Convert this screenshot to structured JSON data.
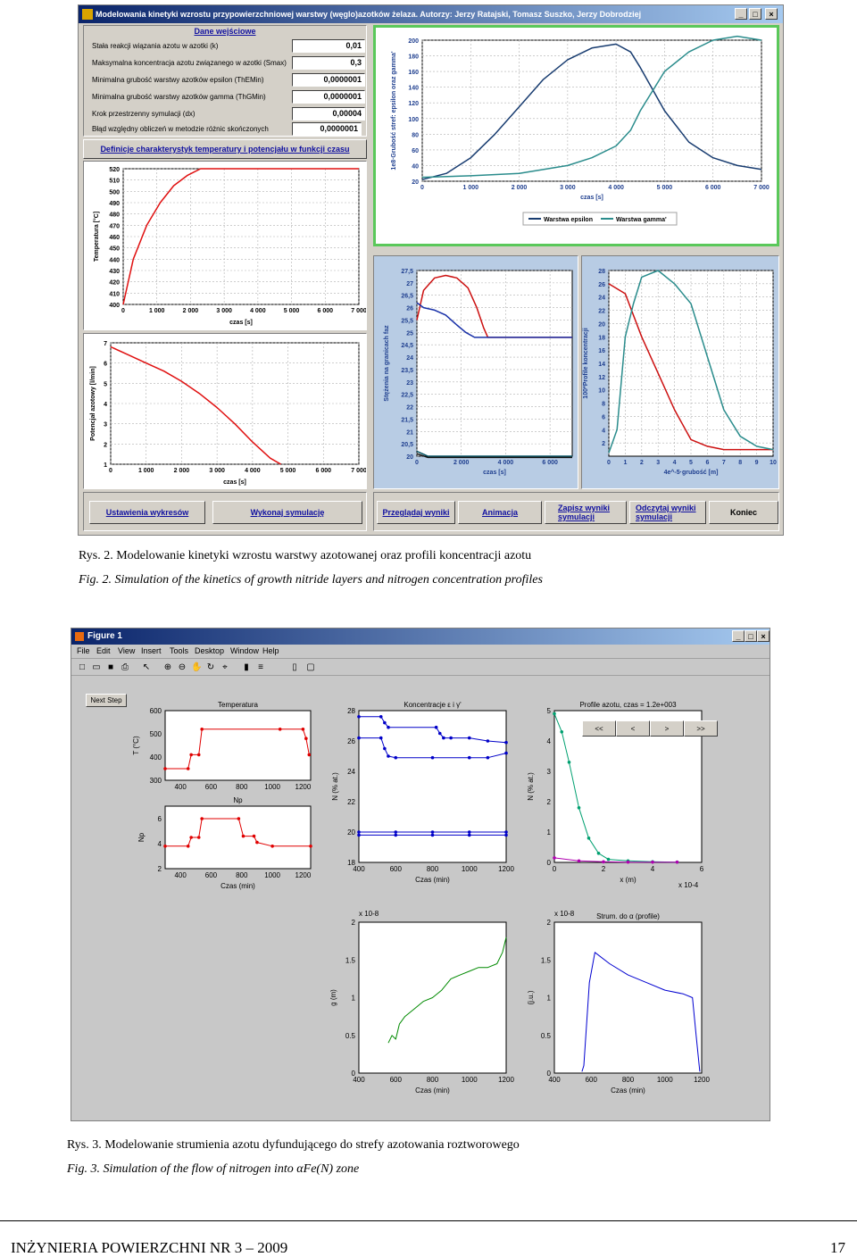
{
  "fig2": {
    "title": "Modelowania kinetyki wzrostu przypowierzchniowej warstwy (węglo)azotków żelaza. Autorzy: Jerzy Ratajski, Tomasz Suszko, Jerzy Dobrodziej",
    "win_min": "_",
    "win_max": "□",
    "win_close": "×",
    "input_header": "Dane wejściowe",
    "params": [
      {
        "label": "Stała reakcji wiązania azotu w azotki (k)",
        "value": "0,01"
      },
      {
        "label": "Maksymalna koncentracja azotu związanego w azotki (Smax)",
        "value": "0,3"
      },
      {
        "label": "Minimalna grubość warstwy azotków epsilon (ThEMin)",
        "value": "0,0000001"
      },
      {
        "label": "Minimalna grubość warstwy azotków gamma (ThGMin)",
        "value": "0,0000001"
      },
      {
        "label": "Krok przestrzenny symulacji (dx)",
        "value": "0,00004"
      },
      {
        "label": "Błąd względny obliczeń w metodzie różnic skończonych",
        "value": "0,0000001"
      }
    ],
    "define_button": "Definicje charakterystyk temperatury i potencjału w funkcji czasu",
    "buttons": {
      "settings": "Ustawienia wykresów",
      "run": "Wykonaj symulację",
      "browse": "Przeglądaj wyniki",
      "animate": "Animacja",
      "save": "Zapisz wyniki symulacji",
      "read": "Odczytaj wyniki symulacji",
      "exit": "Koniec"
    }
  },
  "caption2_pl": "Rys. 2. Modelowanie kinetyki wzrostu warstwy azotowanej oraz profili koncentracji azotu",
  "caption2_en": "Fig. 2. Simulation of the kinetics of growth nitride layers and nitrogen concentration profiles",
  "fig3": {
    "title": "Figure 1",
    "win_min": "_",
    "win_max": "□",
    "win_close": "×",
    "menu": [
      "File",
      "Edit",
      "View",
      "Insert",
      "Tools",
      "Desktop",
      "Window",
      "Help"
    ],
    "next_step": "Next Step",
    "nav": [
      "<<",
      "<",
      ">",
      ">>"
    ]
  },
  "caption3_pl": "Rys. 3. Modelowanie strumienia azotu dyfundującego do strefy azotowania roztworowego",
  "caption3_en": "Fig. 3. Simulation of the flow of nitrogen into αFe(N) zone",
  "footer": {
    "journal": "INŻYNIERIA POWIERZCHNI NR 3 – 2009",
    "page": "17"
  },
  "chart_data": [
    {
      "type": "line",
      "ylabel": "Temperatura [°C]",
      "xlabel": "czas [s]",
      "xlim": [
        0,
        7000
      ],
      "ylim": [
        400,
        520
      ],
      "x_ticks": [
        "0",
        "1 000",
        "2 000",
        "3 000",
        "4 000",
        "5 000",
        "6 000",
        "7 000"
      ],
      "y_ticks": [
        "400",
        "410",
        "420",
        "430",
        "440",
        "450",
        "460",
        "470",
        "480",
        "490",
        "500",
        "510",
        "520"
      ],
      "series": [
        {
          "x": [
            0,
            300,
            700,
            1100,
            1500,
            1900,
            2300,
            7000
          ],
          "y": [
            400,
            440,
            470,
            490,
            505,
            514,
            520,
            520
          ]
        }
      ]
    },
    {
      "type": "line",
      "ylabel": "Potencjał azotowy [l/min]",
      "xlabel": "czas [s]",
      "xlim": [
        0,
        7000
      ],
      "ylim": [
        1,
        7
      ],
      "x_ticks": [
        "0",
        "1 000",
        "2 000",
        "3 000",
        "4 000",
        "5 000",
        "6 000",
        "7 000"
      ],
      "y_ticks": [
        "1",
        "2",
        "3",
        "4",
        "5",
        "6",
        "7"
      ],
      "series": [
        {
          "x": [
            0,
            500,
            1000,
            1500,
            2000,
            2500,
            3000,
            3500,
            4000,
            4500,
            4800
          ],
          "y": [
            6.8,
            6.4,
            6.0,
            5.6,
            5.1,
            4.5,
            3.8,
            3.0,
            2.1,
            1.3,
            1.0
          ]
        }
      ]
    },
    {
      "type": "line",
      "ylabel": "1e8·Grubość stref: epsilon oraz gamma'",
      "xlabel": "czas [s]",
      "xlim": [
        0,
        7000
      ],
      "ylim": [
        20,
        200
      ],
      "x_ticks": [
        "0",
        "1 000",
        "2 000",
        "3 000",
        "4 000",
        "5 000",
        "6 000",
        "7 000"
      ],
      "y_ticks": [
        "20",
        "40",
        "60",
        "80",
        "100",
        "120",
        "140",
        "160",
        "180",
        "200"
      ],
      "series": [
        {
          "name": "Warstwa epsilon",
          "x": [
            0,
            500,
            1000,
            1500,
            2000,
            2500,
            3000,
            3500,
            4000,
            4300,
            4500,
            5000,
            5500,
            6000,
            6500,
            7000
          ],
          "y": [
            22,
            30,
            50,
            80,
            115,
            150,
            175,
            190,
            195,
            185,
            165,
            110,
            70,
            50,
            40,
            35
          ]
        },
        {
          "name": "Warstwa gamma'",
          "x": [
            0,
            1000,
            2000,
            3000,
            3500,
            4000,
            4300,
            4500,
            5000,
            5500,
            6000,
            6500,
            7000
          ],
          "y": [
            25,
            27,
            30,
            40,
            50,
            65,
            85,
            110,
            160,
            185,
            200,
            205,
            200
          ]
        }
      ]
    },
    {
      "type": "line",
      "ylabel": "Stężenia na granicach faz",
      "xlabel": "czas [s]",
      "xlim": [
        0,
        7000
      ],
      "ylim": [
        20,
        27.5
      ],
      "x_ticks": [
        "0",
        "2 000",
        "4 000",
        "6 000"
      ],
      "y_ticks": [
        "20",
        "20,5",
        "21",
        "21,5",
        "22",
        "22,5",
        "23",
        "23,5",
        "24",
        "24,5",
        "25",
        "25,5",
        "26",
        "26,5",
        "27",
        "27,5"
      ],
      "series": [
        {
          "x": [
            0,
            300,
            800,
            1300,
            1800,
            2300,
            2700,
            3000,
            3200,
            7000
          ],
          "y": [
            25.5,
            26.7,
            27.2,
            27.3,
            27.2,
            26.8,
            26.0,
            25.2,
            24.8,
            24.8
          ]
        },
        {
          "x": [
            0,
            300,
            800,
            1300,
            1800,
            2200,
            2600,
            3000,
            7000
          ],
          "y": [
            26.2,
            26.0,
            25.9,
            25.7,
            25.3,
            25.0,
            24.8,
            24.8,
            24.8
          ]
        },
        {
          "x": [
            0,
            500,
            1000,
            7000
          ],
          "y": [
            20.2,
            20.0,
            20.0,
            20.0
          ]
        },
        {
          "x": [
            0,
            500,
            1000,
            7000
          ],
          "y": [
            20.1,
            19.95,
            19.95,
            19.95
          ]
        }
      ]
    },
    {
      "type": "line",
      "ylabel": "100*Profile koncentracji",
      "xlabel": "4e^-5·grubość [m]",
      "xlim": [
        0,
        10
      ],
      "ylim": [
        0,
        28
      ],
      "x_ticks": [
        "0",
        "1",
        "2",
        "3",
        "4",
        "5",
        "6",
        "7",
        "8",
        "9",
        "10"
      ],
      "y_ticks": [
        "2",
        "4",
        "6",
        "8",
        "10",
        "12",
        "14",
        "16",
        "18",
        "20",
        "22",
        "24",
        "26",
        "28"
      ],
      "series": [
        {
          "x": [
            0,
            1,
            2,
            3,
            4,
            5,
            6,
            7,
            8,
            9,
            10
          ],
          "y": [
            26,
            24.5,
            18,
            12.5,
            7,
            2.5,
            1.5,
            1,
            1,
            1,
            1
          ]
        },
        {
          "x": [
            0,
            0.5,
            1,
            1.5,
            2,
            3,
            4,
            5,
            6,
            7,
            8,
            9,
            10
          ],
          "y": [
            0.5,
            4,
            18,
            23,
            27,
            28,
            26,
            23,
            15,
            7,
            3,
            1.5,
            1
          ]
        }
      ]
    },
    {
      "type": "line",
      "title": "Temperatura",
      "xlim": [
        300,
        1250
      ],
      "ylim": [
        300,
        600
      ],
      "x_ticks": [
        "400",
        "600",
        "800",
        "1000",
        "1200"
      ],
      "y_ticks": [
        "300",
        "400",
        "500",
        "600"
      ],
      "ylabel": "T (°C)",
      "series": [
        {
          "x": [
            300,
            450,
            470,
            520,
            540,
            1050,
            1200,
            1220,
            1240
          ],
          "y": [
            350,
            350,
            410,
            410,
            520,
            520,
            520,
            480,
            410
          ]
        }
      ]
    },
    {
      "type": "line",
      "title": "Np",
      "xlabel": "Czas (min)",
      "xlim": [
        300,
        1250
      ],
      "ylim": [
        2,
        7
      ],
      "x_ticks": [
        "400",
        "600",
        "800",
        "1000",
        "1200"
      ],
      "y_ticks": [
        "2",
        "4",
        "6"
      ],
      "ylabel": "Np",
      "series": [
        {
          "x": [
            300,
            450,
            470,
            520,
            540,
            780,
            810,
            880,
            900,
            1000,
            1250
          ],
          "y": [
            3.8,
            3.8,
            4.5,
            4.5,
            6,
            6,
            4.6,
            4.6,
            4.1,
            3.8,
            3.8
          ]
        }
      ]
    },
    {
      "type": "scatter",
      "title": "Koncentracje ε i γ'",
      "xlabel": "Czas (min)",
      "ylabel": "N (% at.)",
      "xlim": [
        400,
        1200
      ],
      "ylim": [
        18,
        28
      ],
      "x_ticks": [
        "400",
        "600",
        "800",
        "1000",
        "1200"
      ],
      "y_ticks": [
        "18",
        "20",
        "22",
        "24",
        "26",
        "28"
      ],
      "series": [
        {
          "x": [
            400,
            520,
            540,
            560,
            820,
            840,
            860,
            900,
            1000,
            1100,
            1200
          ],
          "y": [
            27.6,
            27.6,
            27.2,
            26.9,
            26.9,
            26.5,
            26.2,
            26.2,
            26.2,
            26.0,
            25.9
          ]
        },
        {
          "x": [
            400,
            520,
            540,
            560,
            600,
            800,
            1000,
            1100,
            1200
          ],
          "y": [
            26.2,
            26.2,
            25.5,
            25.0,
            24.9,
            24.9,
            24.9,
            24.9,
            25.2
          ]
        },
        {
          "x": [
            400,
            600,
            800,
            1000,
            1200
          ],
          "y": [
            20.0,
            20.0,
            20.0,
            20.0,
            20.0
          ]
        },
        {
          "x": [
            400,
            600,
            800,
            1000,
            1200
          ],
          "y": [
            19.8,
            19.8,
            19.8,
            19.8,
            19.8
          ]
        }
      ]
    },
    {
      "type": "line",
      "title": "Profile azotu, czas = 1.2e+003",
      "xlabel": "x (m)",
      "ylabel": "N (% at.)",
      "xlim": [
        0,
        6
      ],
      "ylim": [
        0,
        5
      ],
      "x_ticks": [
        "0",
        "2",
        "4",
        "6"
      ],
      "y_ticks": [
        "0",
        "1",
        "2",
        "3",
        "4",
        "5"
      ],
      "x_multiplier": "x 10^-4",
      "series": [
        {
          "x": [
            0,
            0.3,
            0.6,
            1.0,
            1.4,
            1.8,
            2.2,
            3,
            4,
            5
          ],
          "y": [
            4.9,
            4.3,
            3.3,
            1.8,
            0.8,
            0.3,
            0.1,
            0.05,
            0.02,
            0.01
          ]
        },
        {
          "x": [
            0,
            1,
            2,
            3,
            4,
            5
          ],
          "y": [
            0.15,
            0.05,
            0.02,
            0.01,
            0.01,
            0.01
          ]
        }
      ]
    },
    {
      "type": "line",
      "ylabel": "g (m)",
      "xlabel": "Czas (min)",
      "xlim": [
        400,
        1200
      ],
      "ylim": [
        0,
        2
      ],
      "x_ticks": [
        "400",
        "600",
        "800",
        "1000",
        "1200"
      ],
      "y_ticks": [
        "0",
        "0.5",
        "1",
        "1.5",
        "2"
      ],
      "y_multiplier": "x 10^-8",
      "series": [
        {
          "x": [
            560,
            580,
            600,
            620,
            650,
            700,
            750,
            800,
            850,
            900,
            950,
            1000,
            1050,
            1100,
            1150,
            1180,
            1200
          ],
          "y": [
            0.4,
            0.5,
            0.45,
            0.65,
            0.75,
            0.85,
            0.95,
            1.0,
            1.1,
            1.25,
            1.3,
            1.35,
            1.4,
            1.4,
            1.45,
            1.6,
            1.8
          ]
        }
      ]
    },
    {
      "type": "line",
      "title": "Strum. do α (profile)",
      "ylabel": "(j.u.)",
      "xlabel": "Czas (min)",
      "xlim": [
        400,
        1200
      ],
      "ylim": [
        0,
        2
      ],
      "x_ticks": [
        "400",
        "600",
        "800",
        "1000",
        "1200"
      ],
      "y_ticks": [
        "0",
        "0.5",
        "1",
        "1.5",
        "2"
      ],
      "y_multiplier": "x 10^-8",
      "series": [
        {
          "x": [
            550,
            560,
            590,
            620,
            700,
            800,
            900,
            1000,
            1100,
            1150,
            1170,
            1190
          ],
          "y": [
            0.02,
            0.1,
            1.2,
            1.6,
            1.45,
            1.3,
            1.2,
            1.1,
            1.05,
            1.0,
            0.5,
            0.02
          ]
        }
      ]
    }
  ]
}
